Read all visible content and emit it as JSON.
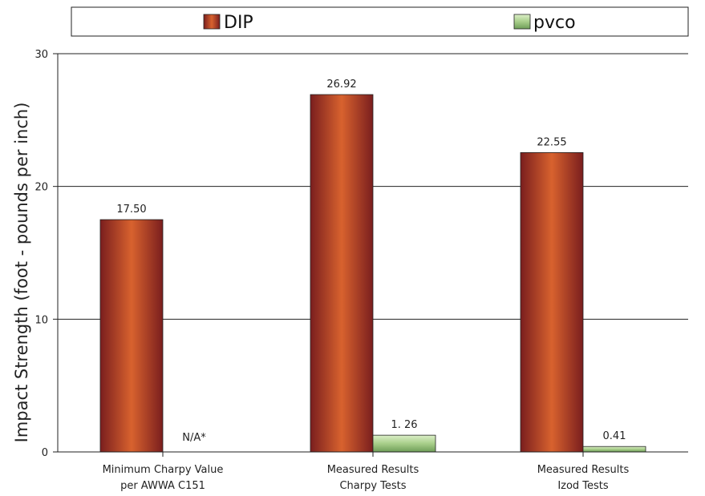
{
  "chart_data": {
    "type": "bar",
    "title": "",
    "xlabel": "",
    "ylabel": "Impact Strength (foot - pounds per inch)",
    "ylim": [
      0,
      30
    ],
    "yticks": [
      0,
      10,
      20,
      30
    ],
    "grid": true,
    "legend_position": "top",
    "categories": [
      [
        "Minimum Charpy Value",
        "per AWWA C151"
      ],
      [
        "Measured Results",
        "Charpy Tests"
      ],
      [
        "Measured Results",
        "Izod Tests"
      ]
    ],
    "series": [
      {
        "name": "DIP",
        "color": "#c8552c",
        "values": [
          17.5,
          26.92,
          22.55
        ],
        "labels": [
          "17.50",
          "26.92",
          "22.55"
        ]
      },
      {
        "name": "pvco",
        "color": "#a9cf8c",
        "values": [
          null,
          1.26,
          0.41
        ],
        "labels": [
          "N/A*",
          "1. 26",
          "0.41"
        ]
      }
    ]
  }
}
